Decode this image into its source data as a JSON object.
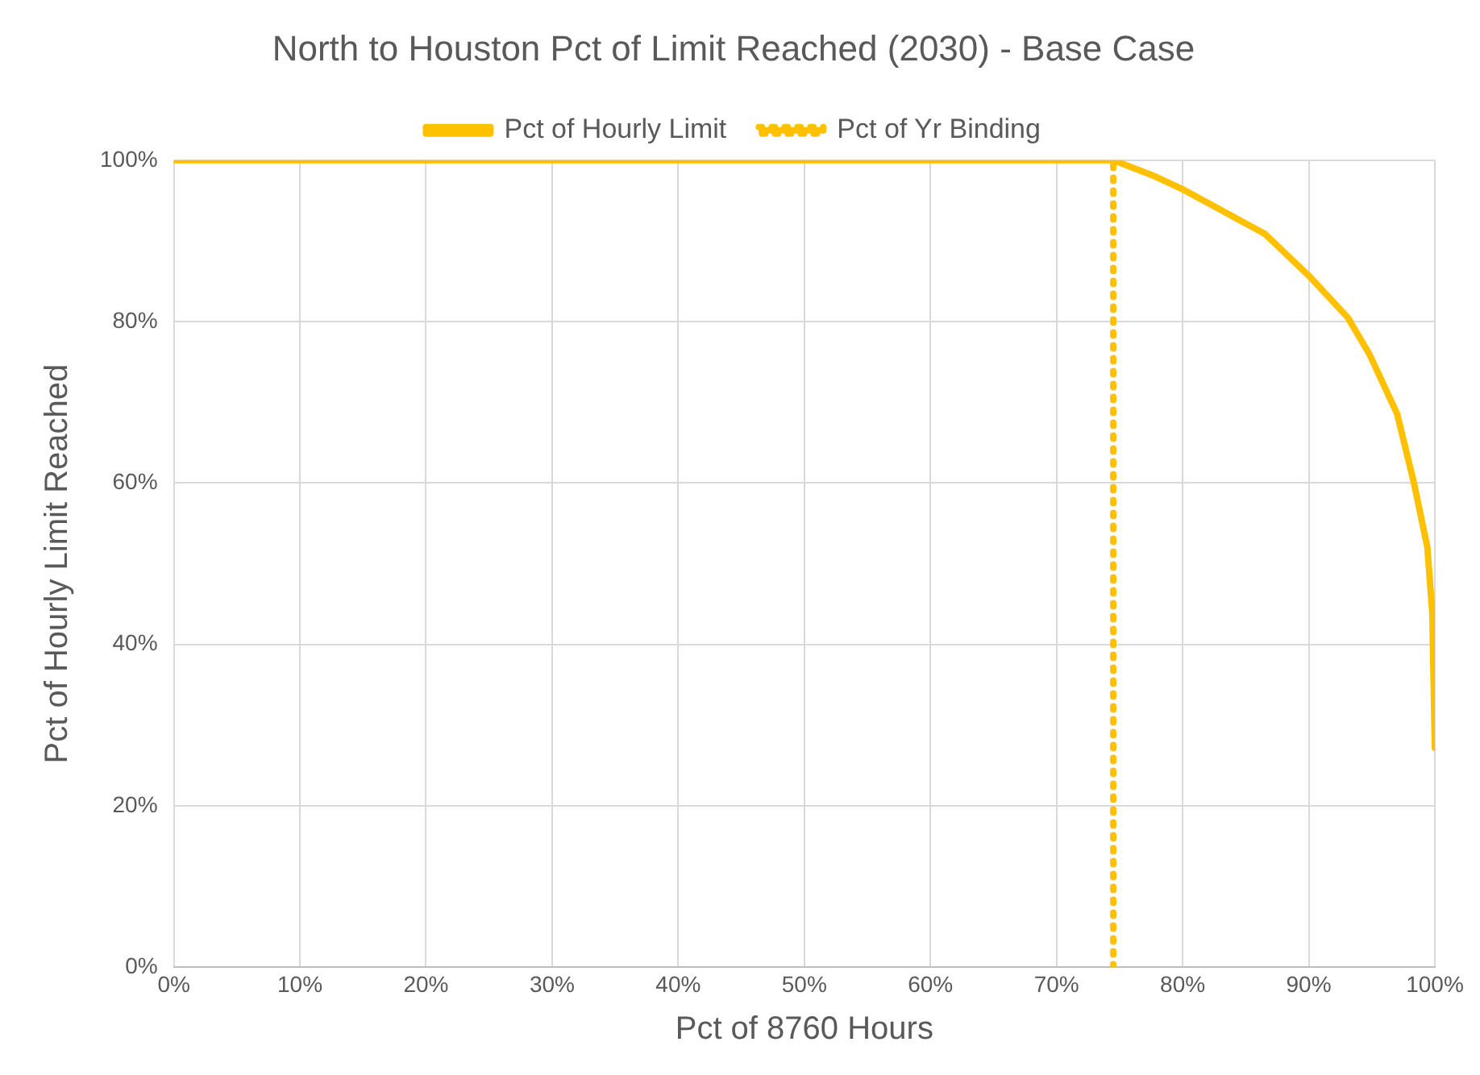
{
  "chart_data": {
    "type": "line",
    "title": "North to Houston Pct of Limit Reached (2030) - Base Case",
    "xlabel": "Pct of 8760 Hours",
    "ylabel": "Pct of Hourly Limit Reached",
    "series": [
      {
        "name": "Pct of Hourly Limit",
        "color": "#ffc000",
        "line_style": "solid",
        "x": [
          0,
          74.5,
          77.8,
          80,
          83.9,
          86.5,
          90,
          93.1,
          94.8,
          97,
          98.3,
          99.4,
          99.8,
          100
        ],
        "values": [
          100,
          100,
          98,
          96.4,
          93.1,
          90.9,
          85.7,
          80.5,
          76,
          68.6,
          60.3,
          52.1,
          43.9,
          27.2
        ]
      },
      {
        "name": "Pct of Yr Binding",
        "color": "#ffc000",
        "line_style": "dotted",
        "x": [
          74.5,
          74.5
        ],
        "values": [
          0,
          100
        ]
      }
    ],
    "xlim": [
      0,
      100
    ],
    "xticks": [
      {
        "value": 0,
        "label": "0%"
      },
      {
        "value": 10,
        "label": "10%"
      },
      {
        "value": 20,
        "label": "20%"
      },
      {
        "value": 30,
        "label": "30%"
      },
      {
        "value": 40,
        "label": "40%"
      },
      {
        "value": 50,
        "label": "50%"
      },
      {
        "value": 60,
        "label": "60%"
      },
      {
        "value": 70,
        "label": "70%"
      },
      {
        "value": 80,
        "label": "80%"
      },
      {
        "value": 90,
        "label": "90%"
      },
      {
        "value": 100,
        "label": "100%"
      }
    ],
    "ylim": [
      0,
      100
    ],
    "yticks": [
      {
        "value": 0,
        "label": "0%"
      },
      {
        "value": 20,
        "label": "20%"
      },
      {
        "value": 40,
        "label": "40%"
      },
      {
        "value": 60,
        "label": "60%"
      },
      {
        "value": 80,
        "label": "80%"
      },
      {
        "value": 100,
        "label": "100%"
      }
    ],
    "grid": true,
    "legend": "top",
    "marker": "none"
  }
}
